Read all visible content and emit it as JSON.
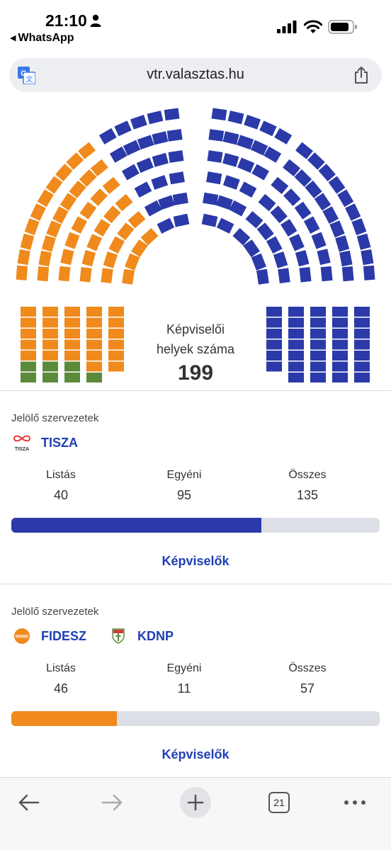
{
  "status_bar": {
    "time": "21:10",
    "back_app": "WhatsApp",
    "icons": [
      "person-icon",
      "signal-icon",
      "wifi-icon",
      "battery-icon"
    ]
  },
  "browser": {
    "url": "vtr.valasztas.hu",
    "icons": [
      "translate-icon",
      "share-icon"
    ]
  },
  "seat_chart": {
    "caption_line1": "Képviselői",
    "caption_line2": "helyek száma",
    "total": "199",
    "colors": {
      "tisza": "#2b3aa8",
      "fidesz": "#f08a1c",
      "kdnp": "#5b8a3a"
    }
  },
  "parties": [
    {
      "label": "Jelölő szervezetek",
      "names": [
        "TISZA"
      ],
      "logo_icons": [
        "tisza-logo-icon"
      ],
      "stats": [
        {
          "label": "Listás",
          "value": "40"
        },
        {
          "label": "Egyéni",
          "value": "95"
        },
        {
          "label": "Összes",
          "value": "135"
        }
      ],
      "share": 0.678,
      "bar_color": "#2b3aa8",
      "link": "Képviselők"
    },
    {
      "label": "Jelölő szervezetek",
      "names": [
        "FIDESZ",
        "KDNP"
      ],
      "logo_icons": [
        "fidesz-logo-icon",
        "kdnp-logo-icon"
      ],
      "stats": [
        {
          "label": "Listás",
          "value": "46"
        },
        {
          "label": "Egyéni",
          "value": "11"
        },
        {
          "label": "Összes",
          "value": "57"
        }
      ],
      "share": 0.286,
      "bar_color": "#f08a1c",
      "link": "Képviselők"
    }
  ],
  "toolbar": {
    "tab_count": "21",
    "icons": [
      "back-arrow-icon",
      "forward-arrow-icon",
      "add-tab-icon",
      "tabs-icon",
      "more-icon"
    ]
  }
}
